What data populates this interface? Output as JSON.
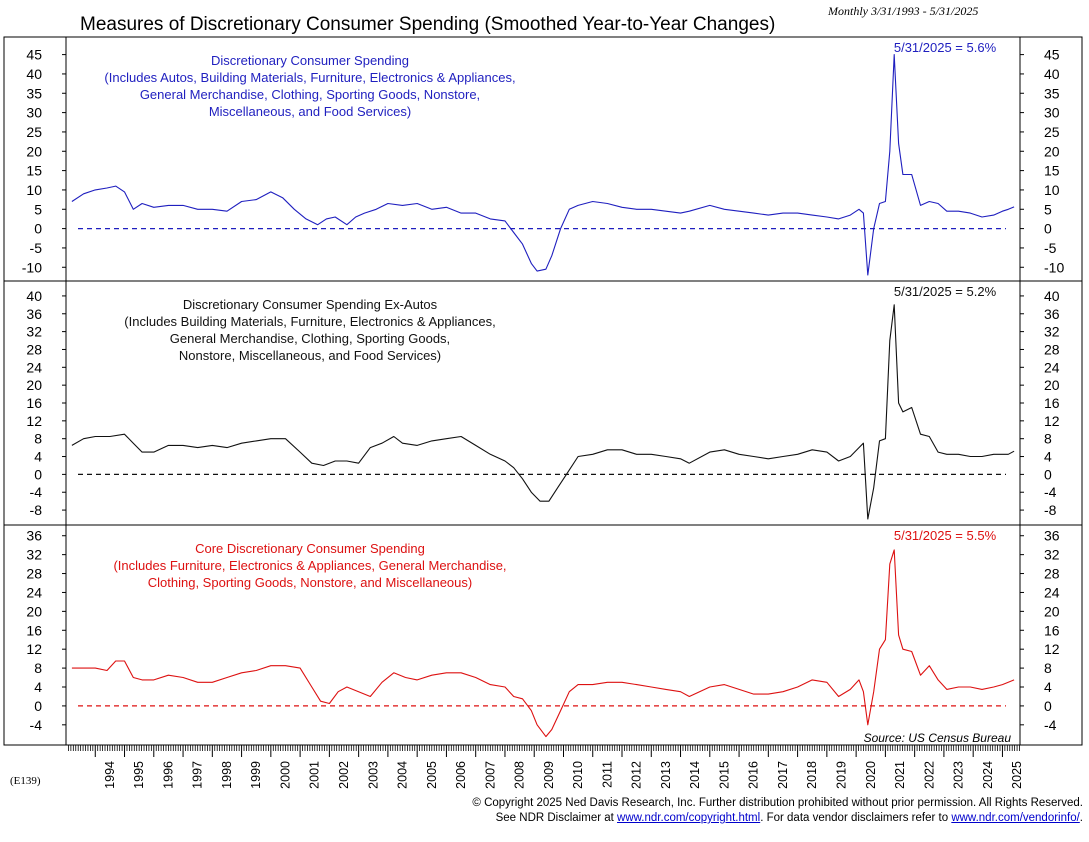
{
  "header": {
    "title": "Measures of Discretionary Consumer Spending (Smoothed Year-to-Year Changes)",
    "date_range": "Monthly 3/31/1993 - 5/31/2025"
  },
  "footer": {
    "chart_code": "(E139)",
    "copyright": "© Copyright 2025 Ned Davis Research, Inc.  Further distribution prohibited without prior permission.  All Rights Reserved.",
    "disclaimer_prefix": "See NDR Disclaimer at ",
    "disclaimer_link": "www.ndr.com/copyright.html",
    "disclaimer_middle": ". For data vendor disclaimers refer to ",
    "vendor_link": "www.ndr.com/vendorinfo/",
    "disclaimer_suffix": "."
  },
  "chart_data": [
    {
      "type": "line",
      "color": "#1f1fbf",
      "title_lines": [
        "Discretionary Consumer Spending",
        "(Includes Autos, Building Materials, Furniture, Electronics & Appliances,",
        "General Merchandise, Clothing, Sporting Goods, Nonstore,",
        "Miscellaneous, and Food Services)"
      ],
      "latest_label": "5/31/2025 = 5.6%",
      "reference_line": 0,
      "ylim": [
        -12,
        48
      ],
      "yticks": [
        -10,
        -5,
        0,
        5,
        10,
        15,
        20,
        25,
        30,
        35,
        40,
        45
      ],
      "ytick_labels": [
        "-10",
        "-5",
        "0",
        "5",
        "10",
        "15",
        "20",
        "25",
        "30",
        "35",
        "40",
        "45"
      ],
      "series": [
        {
          "name": "Discretionary Consumer Spending",
          "x": [
            1993.2,
            1993.6,
            1994.0,
            1994.4,
            1994.7,
            1995.0,
            1995.3,
            1995.6,
            1996.0,
            1996.5,
            1997.0,
            1997.5,
            1998.0,
            1998.5,
            1999.0,
            1999.5,
            2000.0,
            2000.4,
            2000.8,
            2001.2,
            2001.6,
            2001.9,
            2002.2,
            2002.6,
            2002.9,
            2003.2,
            2003.6,
            2004.0,
            2004.5,
            2005.0,
            2005.5,
            2006.0,
            2006.5,
            2007.0,
            2007.5,
            2008.0,
            2008.3,
            2008.6,
            2008.9,
            2009.1,
            2009.4,
            2009.6,
            2009.9,
            2010.2,
            2010.5,
            2011.0,
            2011.5,
            2012.0,
            2012.5,
            2013.0,
            2013.5,
            2014.0,
            2014.3,
            2015.0,
            2015.5,
            2016.0,
            2016.5,
            2017.0,
            2017.5,
            2018.0,
            2018.5,
            2019.0,
            2019.4,
            2019.8,
            2020.1,
            2020.25,
            2020.4,
            2020.6,
            2020.8,
            2021.0,
            2021.15,
            2021.3,
            2021.45,
            2021.6,
            2021.9,
            2022.2,
            2022.5,
            2022.8,
            2023.1,
            2023.5,
            2023.9,
            2024.3,
            2024.7,
            2025.0,
            2025.2,
            2025.4
          ],
          "values": [
            7,
            9,
            10,
            10.5,
            11,
            9.5,
            5,
            6.5,
            5.5,
            6,
            6,
            5,
            5,
            4.5,
            7,
            7.5,
            9.5,
            8,
            5,
            2.5,
            1,
            2.5,
            3,
            1,
            3,
            4,
            5,
            6.5,
            6,
            6.5,
            5,
            5.5,
            4,
            4,
            2.5,
            2,
            -1,
            -4,
            -9,
            -11,
            -10.5,
            -7,
            0,
            5,
            6,
            7,
            6.5,
            5.5,
            5,
            5,
            4.5,
            4,
            4.5,
            6,
            5,
            4.5,
            4,
            3.5,
            4,
            4,
            3.5,
            3,
            2.5,
            3.5,
            5,
            4,
            -12,
            0,
            6.5,
            7,
            20,
            45,
            22,
            14,
            14,
            6,
            7,
            6.5,
            4.5,
            4.5,
            4,
            3,
            3.5,
            4.5,
            5,
            5.6
          ]
        }
      ]
    },
    {
      "type": "line",
      "color": "#111111",
      "title_lines": [
        "Discretionary Consumer Spending Ex-Autos",
        "(Includes Building Materials, Furniture, Electronics & Appliances,",
        "General Merchandise, Clothing, Sporting Goods,",
        "Nonstore, Miscellaneous, and Food Services)"
      ],
      "latest_label": "5/31/2025 = 5.2%",
      "reference_line": 0,
      "ylim": [
        -10,
        42
      ],
      "yticks": [
        -8,
        -4,
        0,
        4,
        8,
        12,
        16,
        20,
        24,
        28,
        32,
        36,
        40
      ],
      "ytick_labels": [
        "-8",
        "-4",
        "0",
        "4",
        "8",
        "12",
        "16",
        "20",
        "24",
        "28",
        "32",
        "36",
        "40"
      ],
      "series": [
        {
          "name": "Discretionary Consumer Spending Ex-Autos",
          "x": [
            1993.2,
            1993.6,
            1994.0,
            1994.5,
            1995.0,
            1995.3,
            1995.6,
            1996.0,
            1996.5,
            1997.0,
            1997.5,
            1998.0,
            1998.5,
            1999.0,
            1999.5,
            2000.0,
            2000.5,
            2001.0,
            2001.4,
            2001.8,
            2002.2,
            2002.6,
            2003.0,
            2003.4,
            2003.8,
            2004.2,
            2004.5,
            2005.0,
            2005.5,
            2006.0,
            2006.5,
            2007.0,
            2007.5,
            2008.0,
            2008.3,
            2008.6,
            2008.9,
            2009.2,
            2009.5,
            2009.8,
            2010.1,
            2010.5,
            2011.0,
            2011.5,
            2012.0,
            2012.5,
            2013.0,
            2013.5,
            2014.0,
            2014.3,
            2015.0,
            2015.5,
            2016.0,
            2016.5,
            2017.0,
            2017.5,
            2018.0,
            2018.5,
            2019.0,
            2019.4,
            2019.8,
            2020.1,
            2020.25,
            2020.4,
            2020.6,
            2020.8,
            2021.0,
            2021.15,
            2021.3,
            2021.45,
            2021.6,
            2021.9,
            2022.2,
            2022.5,
            2022.8,
            2023.1,
            2023.5,
            2023.9,
            2024.3,
            2024.7,
            2025.0,
            2025.2,
            2025.4
          ],
          "values": [
            6.5,
            8,
            8.5,
            8.5,
            9,
            7,
            5,
            5,
            6.5,
            6.5,
            6,
            6.5,
            6,
            7,
            7.5,
            8,
            8,
            5,
            2.5,
            2,
            3,
            3,
            2.5,
            6,
            7,
            8.5,
            7,
            6.5,
            7.5,
            8,
            8.5,
            6.5,
            4.5,
            3,
            1.5,
            -1,
            -4,
            -6,
            -6,
            -3,
            0,
            4,
            4.5,
            5.5,
            5.5,
            4.5,
            4.5,
            4,
            3.5,
            2.5,
            5,
            5.5,
            4.5,
            4,
            3.5,
            4,
            4.5,
            5.5,
            5,
            3,
            4,
            6,
            7,
            -10,
            -3,
            7.5,
            8,
            30,
            38,
            16,
            14,
            15,
            9,
            8.5,
            5,
            4.5,
            4.5,
            4,
            4,
            4.5,
            4.5,
            4.5,
            5.2
          ]
        }
      ]
    },
    {
      "type": "line",
      "color": "#dd1111",
      "title_lines": [
        "Core Discretionary Consumer Spending",
        "(Includes Furniture, Electronics & Appliances, General Merchandise,",
        "Clothing, Sporting Goods, Nonstore, and Miscellaneous)"
      ],
      "latest_label": "5/31/2025 = 5.5%",
      "source": "Source: US Census Bureau",
      "reference_line": 0,
      "ylim": [
        -7,
        37
      ],
      "yticks": [
        -4,
        0,
        4,
        8,
        12,
        16,
        20,
        24,
        28,
        32,
        36
      ],
      "ytick_labels": [
        "-4",
        "0",
        "4",
        "8",
        "12",
        "16",
        "20",
        "24",
        "28",
        "32",
        "36"
      ],
      "xticks": [
        1994,
        1995,
        1996,
        1997,
        1998,
        1999,
        2000,
        2001,
        2002,
        2003,
        2004,
        2005,
        2006,
        2007,
        2008,
        2009,
        2010,
        2011,
        2012,
        2013,
        2014,
        2015,
        2016,
        2017,
        2018,
        2019,
        2020,
        2021,
        2022,
        2023,
        2024,
        2025
      ],
      "xtick_labels": [
        "1994",
        "1995",
        "1996",
        "1997",
        "1998",
        "1999",
        "2000",
        "2001",
        "2002",
        "2003",
        "2004",
        "2005",
        "2006",
        "2007",
        "2008",
        "2009",
        "2010",
        "2011",
        "2012",
        "2013",
        "2014",
        "2015",
        "2016",
        "2017",
        "2018",
        "2019",
        "2020",
        "2021",
        "2022",
        "2023",
        "2024",
        "2025"
      ],
      "series": [
        {
          "name": "Core Discretionary Consumer Spending",
          "x": [
            1993.2,
            1993.6,
            1994.0,
            1994.4,
            1994.7,
            1995.0,
            1995.3,
            1995.6,
            1996.0,
            1996.5,
            1997.0,
            1997.5,
            1998.0,
            1998.5,
            1999.0,
            1999.5,
            2000.0,
            2000.5,
            2001.0,
            2001.4,
            2001.7,
            2002.0,
            2002.3,
            2002.6,
            2003.0,
            2003.4,
            2003.8,
            2004.2,
            2004.6,
            2005.0,
            2005.5,
            2006.0,
            2006.5,
            2007.0,
            2007.5,
            2008.0,
            2008.3,
            2008.6,
            2008.9,
            2009.1,
            2009.4,
            2009.6,
            2009.9,
            2010.2,
            2010.5,
            2011.0,
            2011.5,
            2012.0,
            2012.5,
            2013.0,
            2013.5,
            2014.0,
            2014.3,
            2015.0,
            2015.5,
            2016.0,
            2016.5,
            2017.0,
            2017.5,
            2018.0,
            2018.5,
            2019.0,
            2019.4,
            2019.8,
            2020.1,
            2020.25,
            2020.4,
            2020.6,
            2020.8,
            2021.0,
            2021.15,
            2021.3,
            2021.45,
            2021.6,
            2021.9,
            2022.2,
            2022.5,
            2022.8,
            2023.1,
            2023.5,
            2023.9,
            2024.3,
            2024.7,
            2025.0,
            2025.2,
            2025.4
          ],
          "values": [
            8,
            8,
            8,
            7.5,
            9.5,
            9.5,
            6,
            5.5,
            5.5,
            6.5,
            6,
            5,
            5,
            6,
            7,
            7.5,
            8.5,
            8.5,
            8,
            4,
            1,
            0.5,
            3,
            4,
            3,
            2,
            5,
            7,
            6,
            5.5,
            6.5,
            7,
            7,
            6,
            4.5,
            4,
            2,
            1.5,
            -1,
            -4,
            -6.5,
            -5,
            -1,
            3,
            4.5,
            4.5,
            5,
            5,
            4.5,
            4,
            3.5,
            3,
            2,
            4,
            4.5,
            3.5,
            2.5,
            2.5,
            3,
            4,
            5.5,
            5,
            2,
            3.5,
            5.5,
            3,
            -4,
            3,
            12,
            14,
            30,
            33,
            15,
            12,
            11.5,
            6.5,
            8.5,
            5.5,
            3.5,
            4,
            4,
            3.5,
            4,
            4.5,
            5,
            5.5
          ]
        }
      ]
    }
  ]
}
